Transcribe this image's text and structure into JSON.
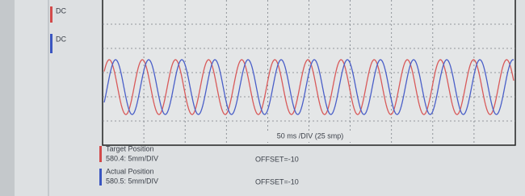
{
  "channels": [
    {
      "label": "DC"
    },
    {
      "label": "DC"
    }
  ],
  "timebase": "50 ms /DIV (25 smp)",
  "traces": [
    {
      "name": "Target Position",
      "scale": "580.4: 5mm/DIV",
      "offset": "OFFSET=-10"
    },
    {
      "name": "Actual Position",
      "scale": "580.5: 5mm/DIV",
      "offset": "OFFSET=-10"
    }
  ]
}
